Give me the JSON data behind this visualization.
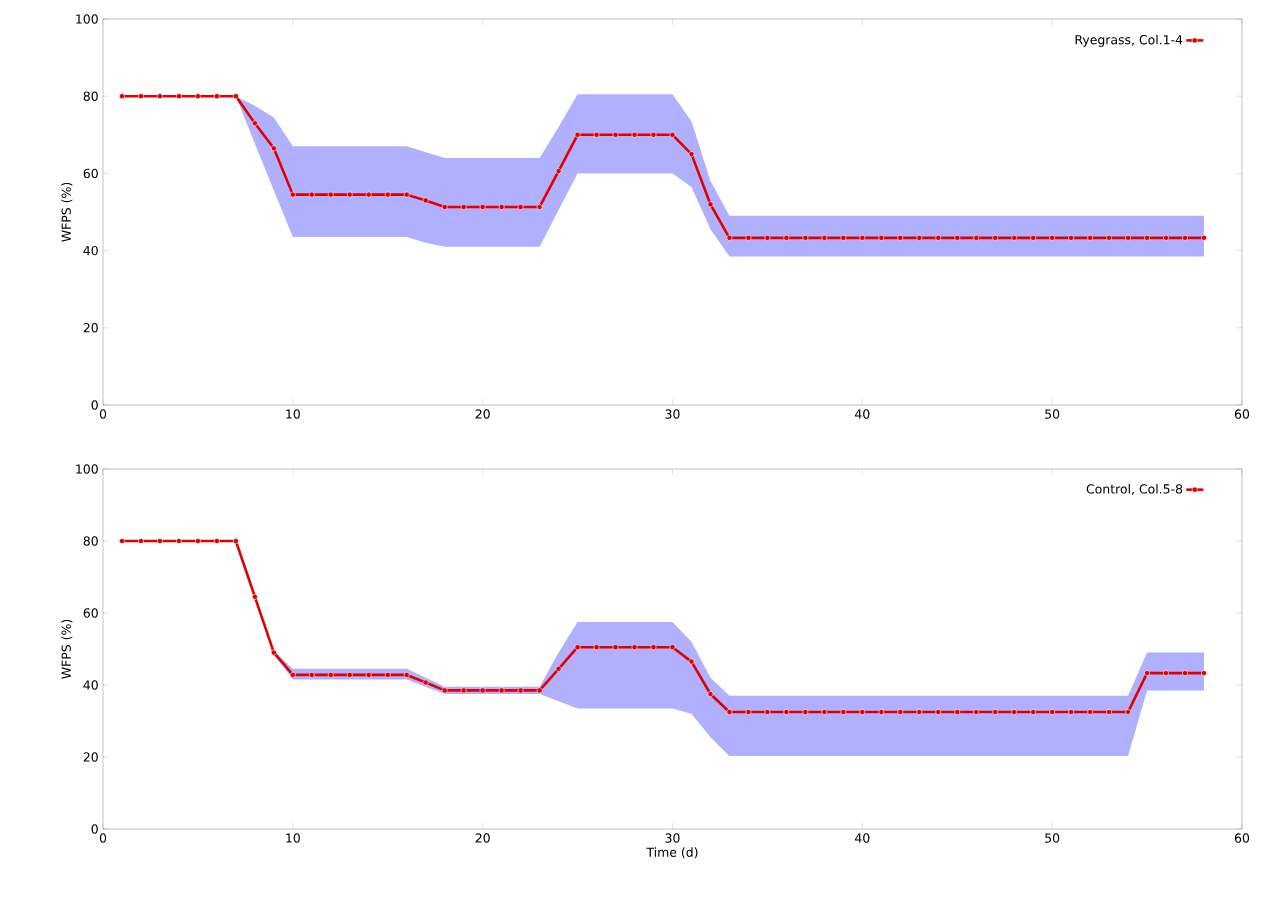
{
  "chart_data": [
    {
      "type": "line",
      "ylabel": "WFPS (%)",
      "xlim": [
        0,
        60
      ],
      "ylim": [
        0,
        100
      ],
      "xticks": [
        0,
        10,
        20,
        30,
        40,
        50,
        60
      ],
      "yticks": [
        0,
        20,
        40,
        60,
        80,
        100
      ],
      "legend": "top right",
      "marker": "circle",
      "line_style": "solid",
      "series": [
        {
          "name": "Ryegrass, Col.1-4",
          "color": "#e00000",
          "x": [
            1,
            2,
            3,
            4,
            5,
            6,
            7,
            8,
            9,
            10,
            11,
            12,
            13,
            14,
            15,
            16,
            17,
            18,
            19,
            20,
            21,
            22,
            23,
            24,
            25,
            26,
            27,
            28,
            29,
            30,
            31,
            32,
            33,
            34,
            35,
            36,
            37,
            38,
            39,
            40,
            41,
            42,
            43,
            44,
            45,
            46,
            47,
            48,
            49,
            50,
            51,
            52,
            53,
            54,
            55,
            56,
            57,
            58
          ],
          "values": [
            80,
            80,
            80,
            80,
            80,
            80,
            80,
            73,
            66.5,
            54.5,
            54.5,
            54.5,
            54.5,
            54.5,
            54.5,
            54.5,
            53,
            51.3,
            51.3,
            51.3,
            51.3,
            51.3,
            51.3,
            60.6,
            70,
            70,
            70,
            70,
            70,
            70,
            65,
            52,
            43.3,
            43.3,
            43.3,
            43.3,
            43.3,
            43.3,
            43.3,
            43.3,
            43.3,
            43.3,
            43.3,
            43.3,
            43.3,
            43.3,
            43.3,
            43.3,
            43.3,
            43.3,
            43.3,
            43.3,
            43.3,
            43.3,
            43.3,
            43.3,
            43.3,
            43.3
          ],
          "upper": [
            80,
            80,
            80,
            80,
            80,
            80,
            80,
            77.5,
            74.5,
            67,
            67,
            67,
            67,
            67,
            67,
            67,
            65.5,
            64,
            64,
            64,
            64,
            64,
            64,
            72,
            80.5,
            80.5,
            80.5,
            80.5,
            80.5,
            80.5,
            73.5,
            58,
            49,
            49,
            49,
            49,
            49,
            49,
            49,
            49,
            49,
            49,
            49,
            49,
            49,
            49,
            49,
            49,
            49,
            49,
            49,
            49,
            49,
            49,
            49,
            49,
            49,
            49
          ],
          "lower": [
            80,
            80,
            80,
            80,
            80,
            80,
            80,
            67.7,
            55.6,
            43.5,
            43.5,
            43.5,
            43.5,
            43.5,
            43.5,
            43.5,
            42,
            41,
            41,
            41,
            41,
            41,
            41,
            50.5,
            60,
            60,
            60,
            60,
            60,
            60,
            56.5,
            45.5,
            38.5,
            38.5,
            38.5,
            38.5,
            38.5,
            38.5,
            38.5,
            38.5,
            38.5,
            38.5,
            38.5,
            38.5,
            38.5,
            38.5,
            38.5,
            38.5,
            38.5,
            38.5,
            38.5,
            38.5,
            38.5,
            38.5,
            38.5,
            38.5,
            38.5,
            38.5
          ]
        }
      ]
    },
    {
      "type": "line",
      "xlabel": "Time (d)",
      "ylabel": "WFPS (%)",
      "xlim": [
        0,
        60
      ],
      "ylim": [
        0,
        100
      ],
      "xticks": [
        0,
        10,
        20,
        30,
        40,
        50,
        60
      ],
      "yticks": [
        0,
        20,
        40,
        60,
        80,
        100
      ],
      "legend": "top right",
      "marker": "circle",
      "line_style": "solid",
      "series": [
        {
          "name": "Control, Col.5-8",
          "color": "#e00000",
          "x": [
            1,
            2,
            3,
            4,
            5,
            6,
            7,
            8,
            9,
            10,
            11,
            12,
            13,
            14,
            15,
            16,
            17,
            18,
            19,
            20,
            21,
            22,
            23,
            24,
            25,
            26,
            27,
            28,
            29,
            30,
            31,
            32,
            33,
            34,
            35,
            36,
            37,
            38,
            39,
            40,
            41,
            42,
            43,
            44,
            45,
            46,
            47,
            48,
            49,
            50,
            51,
            52,
            53,
            54,
            55,
            56,
            57,
            58
          ],
          "values": [
            80,
            80,
            80,
            80,
            80,
            80,
            80,
            64.5,
            49,
            42.8,
            42.8,
            42.8,
            42.8,
            42.8,
            42.8,
            42.8,
            40.7,
            38.5,
            38.5,
            38.5,
            38.5,
            38.5,
            38.5,
            44.5,
            50.5,
            50.5,
            50.5,
            50.5,
            50.5,
            50.5,
            46.5,
            37.5,
            32.5,
            32.5,
            32.5,
            32.5,
            32.5,
            32.5,
            32.5,
            32.5,
            32.5,
            32.5,
            32.5,
            32.5,
            32.5,
            32.5,
            32.5,
            32.5,
            32.5,
            32.5,
            32.5,
            32.5,
            32.5,
            32.5,
            43.3,
            43.3,
            43.3,
            43.3
          ],
          "upper": [
            80,
            80,
            80,
            80,
            80,
            80,
            80,
            64.5,
            49.5,
            44.5,
            44.5,
            44.5,
            44.5,
            44.5,
            44.5,
            44.5,
            42,
            39.5,
            39.5,
            39.5,
            39.5,
            39.5,
            39.5,
            49,
            57.5,
            57.5,
            57.5,
            57.5,
            57.5,
            57.5,
            52,
            42,
            37,
            37,
            37,
            37,
            37,
            37,
            37,
            37,
            37,
            37,
            37,
            37,
            37,
            37,
            37,
            37,
            37,
            37,
            37,
            37,
            37,
            37,
            49,
            49,
            49,
            49
          ],
          "lower": [
            80,
            80,
            80,
            80,
            80,
            80,
            80,
            64.5,
            48.5,
            41.5,
            41.5,
            41.5,
            41.5,
            41.5,
            41.5,
            41.5,
            39.5,
            37.5,
            37.5,
            37.5,
            37.5,
            37.5,
            37.5,
            35.5,
            33.5,
            33.5,
            33.5,
            33.5,
            33.5,
            33.5,
            32,
            25.5,
            20.3,
            20.3,
            20.3,
            20.3,
            20.3,
            20.3,
            20.3,
            20.3,
            20.3,
            20.3,
            20.3,
            20.3,
            20.3,
            20.3,
            20.3,
            20.3,
            20.3,
            20.3,
            20.3,
            20.3,
            20.3,
            20.3,
            38.5,
            38.5,
            38.5,
            38.5
          ]
        }
      ]
    }
  ]
}
